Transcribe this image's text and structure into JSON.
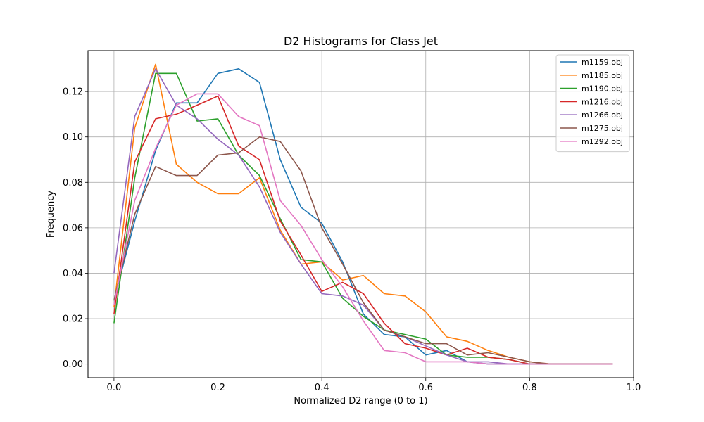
{
  "chart_data": {
    "type": "line",
    "title": "D2 Histograms for Class Jet",
    "xlabel": "Normalized D2 range (0 to 1)",
    "ylabel": "Frequency",
    "xlim": [
      -0.05,
      1.0
    ],
    "ylim": [
      -0.006,
      0.138
    ],
    "xticks": [
      0.0,
      0.2,
      0.4,
      0.6,
      0.8,
      1.0
    ],
    "xtick_labels": [
      "0.0",
      "0.2",
      "0.4",
      "0.6",
      "0.8",
      "1.0"
    ],
    "yticks": [
      0.0,
      0.02,
      0.04,
      0.06,
      0.08,
      0.1,
      0.12
    ],
    "ytick_labels": [
      "0.00",
      "0.02",
      "0.04",
      "0.06",
      "0.08",
      "0.10",
      "0.12"
    ],
    "grid": true,
    "legend_position": "top-right",
    "x": [
      0.0,
      0.04,
      0.08,
      0.12,
      0.16,
      0.2,
      0.24,
      0.28,
      0.32,
      0.36,
      0.4,
      0.44,
      0.48,
      0.52,
      0.56,
      0.6,
      0.64,
      0.68,
      0.72,
      0.76,
      0.8,
      0.84,
      0.88,
      0.92,
      0.96
    ],
    "series": [
      {
        "name": "m1159.obj",
        "color": "#1f77b4",
        "values": [
          0.028,
          0.063,
          0.094,
          0.115,
          0.115,
          0.128,
          0.13,
          0.124,
          0.09,
          0.069,
          0.062,
          0.045,
          0.022,
          0.013,
          0.012,
          0.004,
          0.006,
          0.001,
          0.0,
          0.0,
          0.0,
          0.0,
          0.0,
          0.0,
          0.0
        ]
      },
      {
        "name": "m1185.obj",
        "color": "#ff7f0e",
        "values": [
          0.025,
          0.104,
          0.132,
          0.088,
          0.08,
          0.075,
          0.075,
          0.082,
          0.059,
          0.044,
          0.045,
          0.037,
          0.039,
          0.031,
          0.03,
          0.023,
          0.012,
          0.01,
          0.006,
          0.003,
          0.001,
          0.0,
          0.0,
          0.0,
          0.0
        ]
      },
      {
        "name": "m1190.obj",
        "color": "#2ca02c",
        "values": [
          0.018,
          0.082,
          0.128,
          0.128,
          0.107,
          0.108,
          0.092,
          0.083,
          0.064,
          0.046,
          0.045,
          0.029,
          0.021,
          0.015,
          0.013,
          0.011,
          0.004,
          0.003,
          0.003,
          0.002,
          0.0,
          0.0,
          0.0,
          0.0,
          0.0
        ]
      },
      {
        "name": "m1216.obj",
        "color": "#d62728",
        "values": [
          0.022,
          0.089,
          0.108,
          0.11,
          0.114,
          0.118,
          0.096,
          0.09,
          0.063,
          0.048,
          0.032,
          0.036,
          0.031,
          0.018,
          0.009,
          0.007,
          0.004,
          0.007,
          0.003,
          0.002,
          0.0,
          0.0,
          0.0,
          0.0,
          0.0
        ]
      },
      {
        "name": "m1266.obj",
        "color": "#9467bd",
        "values": [
          0.04,
          0.109,
          0.13,
          0.114,
          0.108,
          0.099,
          0.092,
          0.078,
          0.058,
          0.044,
          0.031,
          0.03,
          0.026,
          0.015,
          0.012,
          0.008,
          0.004,
          0.001,
          0.001,
          0.0,
          0.0,
          0.0,
          0.0,
          0.0,
          0.0
        ]
      },
      {
        "name": "m1275.obj",
        "color": "#8c564b",
        "values": [
          0.028,
          0.066,
          0.087,
          0.083,
          0.083,
          0.092,
          0.093,
          0.1,
          0.098,
          0.085,
          0.06,
          0.044,
          0.027,
          0.015,
          0.012,
          0.009,
          0.009,
          0.004,
          0.005,
          0.003,
          0.001,
          0.0,
          0.0,
          0.0,
          0.0
        ]
      },
      {
        "name": "m1292.obj",
        "color": "#e377c2",
        "values": [
          0.026,
          0.072,
          0.095,
          0.114,
          0.119,
          0.119,
          0.109,
          0.105,
          0.072,
          0.061,
          0.046,
          0.034,
          0.019,
          0.006,
          0.005,
          0.001,
          0.001,
          0.001,
          0.0,
          0.0,
          0.0,
          0.0,
          0.0,
          0.0,
          0.0
        ]
      }
    ]
  }
}
